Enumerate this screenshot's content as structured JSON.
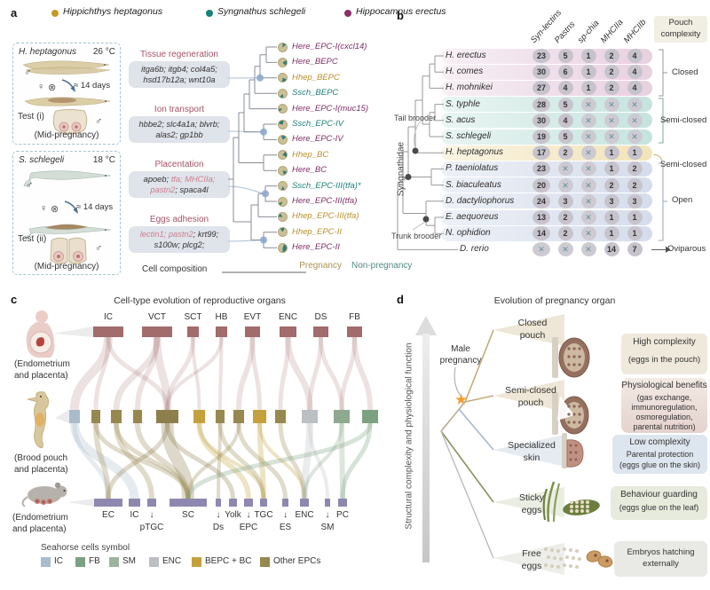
{
  "species_legend": [
    {
      "name": "Hippichthys heptagonus",
      "color": "#c49a26"
    },
    {
      "name": "Syngnathus schlegeli",
      "color": "#17807a"
    },
    {
      "name": "Hippocampus erectus",
      "color": "#8a2f68"
    }
  ],
  "panel_a": {
    "label": "a",
    "tests": [
      {
        "species": "H. heptagonus",
        "temp": "26 °C",
        "male": "♂",
        "female": "♀",
        "cross": "⊗",
        "days": "≈ 14 days",
        "test_label": "Test (i)",
        "stage": "(Mid-pregnancy)"
      },
      {
        "species": "S. schlegeli",
        "temp": "18 °C",
        "male": "♂",
        "female": "♀",
        "cross": "⊗",
        "days": "≈ 14 days",
        "test_label": "Test (ii)",
        "stage": "(Mid-pregnancy)"
      }
    ],
    "gene_groups": [
      {
        "title": "Tissue regeneration",
        "segments": [
          {
            "text": "itga6b; itgb4; col4a5; hsd17b12a; wnt10a",
            "hl": false
          }
        ]
      },
      {
        "title": "Ion transport",
        "segments": [
          {
            "text": "hbbe2; slc4a1a; blvrb; alas2; gp1bb",
            "hl": false
          }
        ]
      },
      {
        "title": "Placentation",
        "segments": [
          {
            "text": "apoeb; ",
            "hl": false
          },
          {
            "text": "tfa; MHCIIa; pastn2",
            "hl": true
          },
          {
            "text": "; spaca4l",
            "hl": false
          }
        ]
      },
      {
        "title": "Eggs adhesion",
        "segments": [
          {
            "text": "lectin1; pastn2",
            "hl": true
          },
          {
            "text": "; krt99; s100w; plcg2;",
            "hl": false
          }
        ]
      }
    ],
    "tree_tips": [
      {
        "label": "Here_EPC-I(cxcl14)",
        "species": "here",
        "pie": 14
      },
      {
        "label": "Here_BEPC",
        "species": "here",
        "pie": 22
      },
      {
        "label": "Hhep_BEPC",
        "species": "hhep",
        "pie": 20
      },
      {
        "label": "Ssch_BEPC",
        "species": "ssch",
        "pie": 15
      },
      {
        "label": "Here_EPC-I(muc15)",
        "species": "here",
        "pie": 12
      },
      {
        "label": "Ssch_EPC-IV",
        "species": "ssch",
        "pie": 25
      },
      {
        "label": "Here_EPC-IV",
        "species": "here",
        "pie": 20
      },
      {
        "label": "Hhep_BC",
        "species": "hhep",
        "pie": 24
      },
      {
        "label": "Here_BC",
        "species": "here",
        "pie": 18
      },
      {
        "label": "Ssch_EPC-III(tfa)*",
        "species": "ssch",
        "pie": 12
      },
      {
        "label": "Here_EPC-III(tfa)",
        "species": "here",
        "pie": 12
      },
      {
        "label": "Hhep_EPC-III(tfa)",
        "species": "hhep",
        "pie": 16
      },
      {
        "label": "Hhep_EPC-II",
        "species": "hhep",
        "pie": 18
      },
      {
        "label": "Here_EPC-II",
        "species": "here",
        "pie": 45
      }
    ],
    "axis": {
      "cell_composition": "Cell composition",
      "pregnancy": "Pregnancy",
      "non_pregnancy": "Non-pregnancy"
    }
  },
  "panel_b": {
    "label": "b",
    "columns": [
      "Syn-lectins",
      "Pastns",
      "sp-chia",
      "MHCIIa",
      "MHCIIb"
    ],
    "pouch_header": "Pouch complexity",
    "clade_label": "Syngnathidae",
    "tail_brooder": "Tail brooder",
    "trunk_brooder": "Trunk brooder",
    "rows": [
      {
        "name": "H. erectus",
        "values": [
          "23",
          "5",
          "1",
          "2",
          "4"
        ],
        "group": "closed"
      },
      {
        "name": "H. comes",
        "values": [
          "30",
          "6",
          "1",
          "2",
          "4"
        ],
        "group": "closed"
      },
      {
        "name": "H. mohnikei",
        "values": [
          "27",
          "4",
          "1",
          "2",
          "4"
        ],
        "group": "closed"
      },
      {
        "name": "S. typhle",
        "values": [
          "28",
          "5",
          "X",
          "X",
          "X"
        ],
        "group": "semi"
      },
      {
        "name": "S. acus",
        "values": [
          "30",
          "4",
          "X",
          "X",
          "X"
        ],
        "group": "semi"
      },
      {
        "name": "S. schlegeli",
        "values": [
          "19",
          "5",
          "X",
          "X",
          "X"
        ],
        "group": "semi"
      },
      {
        "name": "H. heptagonus",
        "values": [
          "17",
          "2",
          "X",
          "1",
          "1"
        ],
        "group": "hept"
      },
      {
        "name": "P. taeniolatus",
        "values": [
          "23",
          "X",
          "X",
          "1",
          "2"
        ],
        "group": "open"
      },
      {
        "name": "S. biaculeatus",
        "values": [
          "20",
          "X",
          "X",
          "2",
          "2"
        ],
        "group": "open"
      },
      {
        "name": "D. dactyliophorus",
        "values": [
          "24",
          "3",
          "X",
          "3",
          "3"
        ],
        "group": "open"
      },
      {
        "name": "E. aequoreus",
        "values": [
          "13",
          "2",
          "X",
          "1",
          "1"
        ],
        "group": "open"
      },
      {
        "name": "N. ophidion",
        "values": [
          "14",
          "2",
          "X",
          "1",
          "1"
        ],
        "group": "open"
      },
      {
        "name": "D. rerio",
        "values": [
          "X",
          "X",
          "X",
          "14",
          "7"
        ],
        "group": "none",
        "indent": true
      }
    ],
    "groups": [
      {
        "label": "Closed"
      },
      {
        "label": "Semi-closed"
      },
      {
        "label": "Semi-closed"
      },
      {
        "label": "Open"
      },
      {
        "label": "Oviparous"
      }
    ]
  },
  "panel_c": {
    "label": "c",
    "title": "Cell-type evolution of reproductive organs",
    "top_nodes": [
      "IC",
      "VCT",
      "SCT",
      "HB",
      "EVT",
      "ENC",
      "DS",
      "FB"
    ],
    "row_labels": {
      "human": "(Endometrium and placenta)",
      "seahorse": "(Brood pouch and placenta)",
      "mouse": "(Endometrium and placenta)"
    },
    "bottom_nodes": [
      {
        "l1": "EC",
        "l2": ""
      },
      {
        "l1": "IC",
        "l2": ""
      },
      {
        "l1": "↓",
        "l2": "pTGC"
      },
      {
        "l1": "SC",
        "l2": ""
      },
      {
        "l1": "↓",
        "l2": "Ds"
      },
      {
        "l1": "Yolk",
        "l2": ""
      },
      {
        "l1": "↓",
        "l2": "EPC"
      },
      {
        "l1": "TGC",
        "l2": ""
      },
      {
        "l1": "↓",
        "l2": "ES"
      },
      {
        "l1": "ENC",
        "l2": ""
      },
      {
        "l1": "↓",
        "l2": "SM"
      },
      {
        "l1": "PC",
        "l2": ""
      }
    ],
    "legend": {
      "title": "Seahorse cells symbol",
      "items": [
        {
          "label": "IC",
          "color": "#a9bccb"
        },
        {
          "label": "FB",
          "color": "#7ba181"
        },
        {
          "label": "SM",
          "color": "#9cb39c"
        },
        {
          "label": "ENC",
          "color": "#bcbfc3"
        },
        {
          "label": "BEPC + BC",
          "color": "#c5a13e"
        },
        {
          "label": "Other EPCs",
          "color": "#97884f"
        }
      ]
    }
  },
  "panel_d": {
    "label": "d",
    "title": "Evolution of pregnancy organ",
    "y_axis_label": "Structural complexity and physiological function",
    "male_pregnancy": "Male pregnancy",
    "star_icon": "★",
    "stages": [
      "Closed pouch",
      "Semi-closed pouch",
      "Specialized skin",
      "Sticky eggs",
      "Free eggs"
    ],
    "annotations": {
      "high": {
        "title": "High complexity",
        "sub": "(eggs in the pouch)"
      },
      "benefits": {
        "title": "Physiological benefits",
        "lines": [
          "(gas exchange,",
          "immunoregulation,",
          "osmoregulation,",
          "parental nutrition)"
        ]
      },
      "low": {
        "title": "Low complexity",
        "sub1": "Parental protection",
        "sub2": "(eggs glue on the skin)"
      },
      "behaviour": {
        "title": "Behaviour guarding",
        "sub": "(eggs glue on the leaf)"
      },
      "free": {
        "text": "Embryos hatching externally"
      }
    }
  }
}
